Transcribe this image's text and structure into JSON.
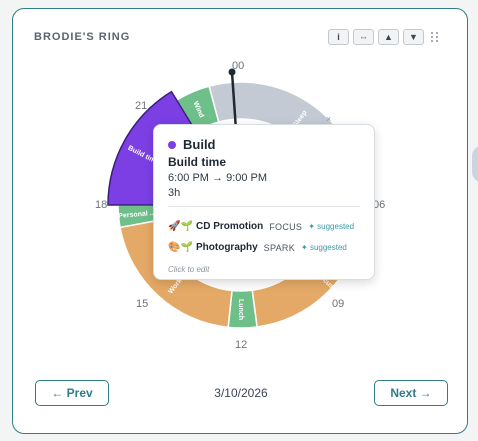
{
  "card": {
    "title": "BRODIE'S RING"
  },
  "controls": [
    {
      "name": "info-button",
      "glyph": "i"
    },
    {
      "name": "resize-button",
      "glyph": "⇔"
    },
    {
      "name": "move-up-button",
      "glyph": "▲"
    },
    {
      "name": "move-down-button",
      "glyph": "▼"
    }
  ],
  "hours": {
    "h00": "00",
    "h06": "06",
    "h09": "09",
    "h12": "12",
    "h15": "15",
    "h18": "18",
    "h21": "21"
  },
  "segments": [
    {
      "label": "Wind",
      "color": "#6fbf8a"
    },
    {
      "label": "Sleep",
      "color": "#c3cad3"
    },
    {
      "label": "",
      "color": "#6fbf8a"
    },
    {
      "label": "Work focus",
      "color": "#e4a966"
    },
    {
      "label": "Lunch",
      "color": "#6fbf8a"
    },
    {
      "label": "Work",
      "color": "#e4a966"
    },
    {
      "label": "Personal ...",
      "color": "#6fbf8a"
    },
    {
      "label": "Build time",
      "color": "#7b3fe4"
    }
  ],
  "popup": {
    "name": "Build",
    "subtitle": "Build time",
    "time": "6:00 PM → 9:00 PM",
    "duration": "3h",
    "suggestions": [
      {
        "emoji": "🚀🌱",
        "name": "CD Promotion",
        "kind": "FOCUS",
        "tag": "✦ suggested"
      },
      {
        "emoji": "🎨🌱",
        "name": "Photography",
        "kind": "SPARK",
        "tag": "✦ suggested"
      }
    ],
    "footer": "Click to edit",
    "dot_color": "#7b3fe4"
  },
  "nav": {
    "prev": "← Prev",
    "next": "Next →",
    "date": "3/10/2026"
  },
  "colors": {
    "accent": "#2f7d89",
    "build": "#7b3fe4",
    "free": "#6fbf8a",
    "work": "#e4a966",
    "sleep": "#c3cad3"
  }
}
